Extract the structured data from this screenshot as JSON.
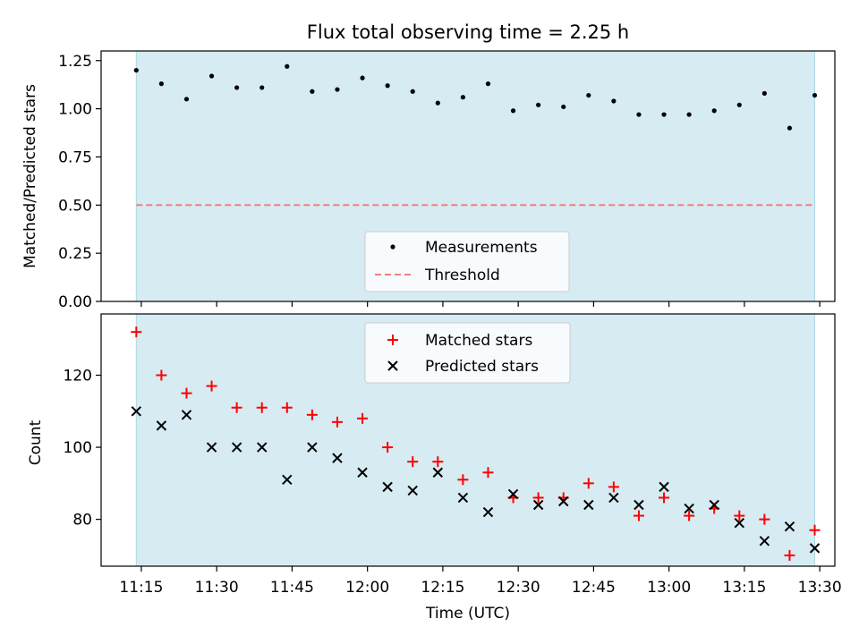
{
  "chart_data": [
    {
      "type": "scatter",
      "title": "Flux total observing time = 2.25 h",
      "xlabel": "",
      "ylabel": "Matched/Predicted stars",
      "ylim": [
        0,
        1.25
      ],
      "yticks": [
        "0.00",
        "0.25",
        "0.50",
        "0.75",
        "1.00",
        "1.25"
      ],
      "legend": {
        "position": "lower center",
        "entries": [
          "Measurements",
          "Threshold"
        ]
      },
      "shaded_span": {
        "start": "11:14",
        "end": "13:29",
        "color": "#add8e6"
      },
      "threshold": {
        "value": 0.5,
        "color": "#f08080",
        "style": "dashed"
      },
      "series": [
        {
          "name": "Measurements",
          "marker": "dot",
          "color": "#000000",
          "x": [
            "11:14",
            "11:19",
            "11:24",
            "11:29",
            "11:34",
            "11:39",
            "11:44",
            "11:49",
            "11:54",
            "11:59",
            "12:04",
            "12:09",
            "12:14",
            "12:19",
            "12:24",
            "12:29",
            "12:34",
            "12:39",
            "12:44",
            "12:49",
            "12:54",
            "12:59",
            "13:04",
            "13:09",
            "13:14",
            "13:19",
            "13:24",
            "13:29"
          ],
          "values": [
            1.2,
            1.13,
            1.05,
            1.17,
            1.11,
            1.11,
            1.22,
            1.09,
            1.1,
            1.16,
            1.12,
            1.09,
            1.03,
            1.06,
            1.13,
            0.99,
            1.02,
            1.01,
            1.07,
            1.04,
            0.97,
            0.97,
            0.97,
            0.99,
            1.02,
            1.08,
            0.9,
            1.07
          ]
        }
      ]
    },
    {
      "type": "scatter",
      "title": "",
      "xlabel": "Time (UTC)",
      "ylabel": "Count",
      "ylim": [
        67,
        137
      ],
      "yticks": [
        "80",
        "100",
        "120"
      ],
      "xticks": [
        "11:15",
        "11:30",
        "11:45",
        "12:00",
        "12:15",
        "12:30",
        "12:45",
        "13:00",
        "13:15",
        "13:30"
      ],
      "xlim": [
        "11:07",
        "13:33"
      ],
      "legend": {
        "position": "upper center",
        "entries": [
          "Matched stars",
          "Predicted stars"
        ]
      },
      "shaded_span": {
        "start": "11:14",
        "end": "13:29",
        "color": "#add8e6"
      },
      "series": [
        {
          "name": "Matched stars",
          "marker": "plus",
          "color": "#ff0000",
          "x": [
            "11:14",
            "11:19",
            "11:24",
            "11:29",
            "11:34",
            "11:39",
            "11:44",
            "11:49",
            "11:54",
            "11:59",
            "12:04",
            "12:09",
            "12:14",
            "12:19",
            "12:24",
            "12:29",
            "12:34",
            "12:39",
            "12:44",
            "12:49",
            "12:54",
            "12:59",
            "13:04",
            "13:09",
            "13:14",
            "13:19",
            "13:24",
            "13:29"
          ],
          "values": [
            132,
            120,
            115,
            117,
            111,
            111,
            111,
            109,
            107,
            108,
            100,
            96,
            96,
            91,
            93,
            86,
            86,
            86,
            90,
            89,
            81,
            86,
            81,
            83,
            81,
            80,
            70,
            77
          ]
        },
        {
          "name": "Predicted stars",
          "marker": "x",
          "color": "#000000",
          "x": [
            "11:14",
            "11:19",
            "11:24",
            "11:29",
            "11:34",
            "11:39",
            "11:44",
            "11:49",
            "11:54",
            "11:59",
            "12:04",
            "12:09",
            "12:14",
            "12:19",
            "12:24",
            "12:29",
            "12:34",
            "12:39",
            "12:44",
            "12:49",
            "12:54",
            "12:59",
            "13:04",
            "13:09",
            "13:14",
            "13:19",
            "13:24",
            "13:29"
          ],
          "values": [
            110,
            106,
            109,
            100,
            100,
            100,
            91,
            100,
            97,
            93,
            89,
            88,
            93,
            86,
            82,
            87,
            84,
            85,
            84,
            86,
            84,
            89,
            83,
            84,
            79,
            74,
            78,
            72
          ]
        }
      ]
    }
  ]
}
